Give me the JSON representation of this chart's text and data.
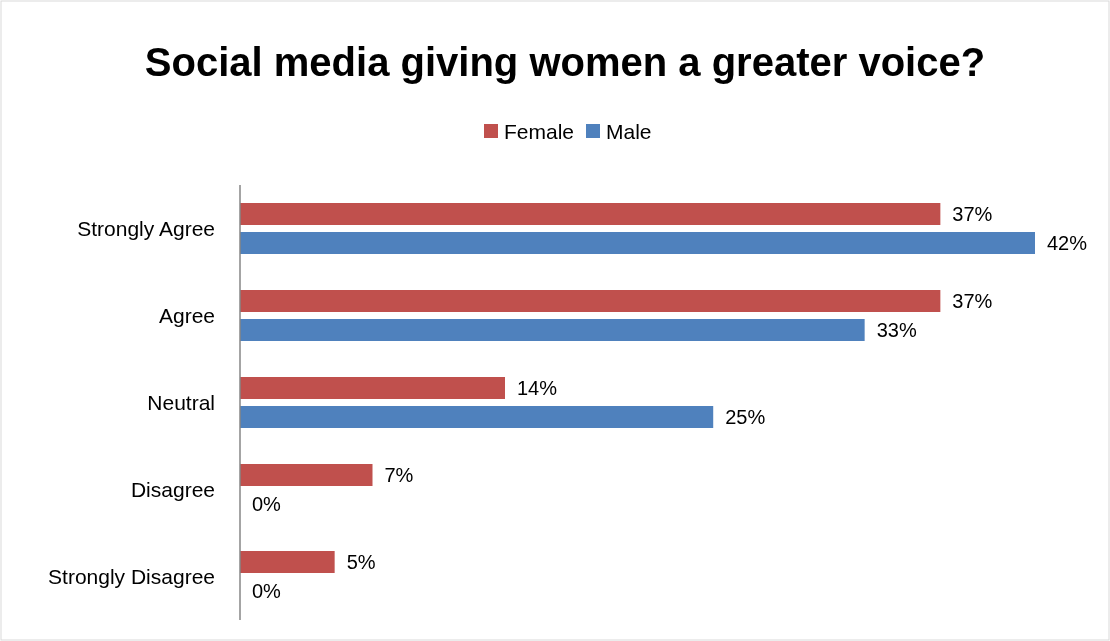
{
  "chart_data": {
    "type": "bar",
    "orientation": "horizontal",
    "title": "Social media giving women a greater voice?",
    "categories": [
      "Strongly Agree",
      "Agree",
      "Neutral",
      "Disagree",
      "Strongly Disagree"
    ],
    "series": [
      {
        "name": "Female",
        "color": "#c0504d",
        "values": [
          37,
          37,
          14,
          7,
          5
        ],
        "value_labels": [
          "37%",
          "37%",
          "14%",
          "7%",
          "5%"
        ]
      },
      {
        "name": "Male",
        "color": "#4f81bd",
        "values": [
          42,
          33,
          25,
          0,
          0
        ],
        "value_labels": [
          "42%",
          "33%",
          "25%",
          "0%",
          "0%"
        ]
      }
    ],
    "legend": "top"
  }
}
